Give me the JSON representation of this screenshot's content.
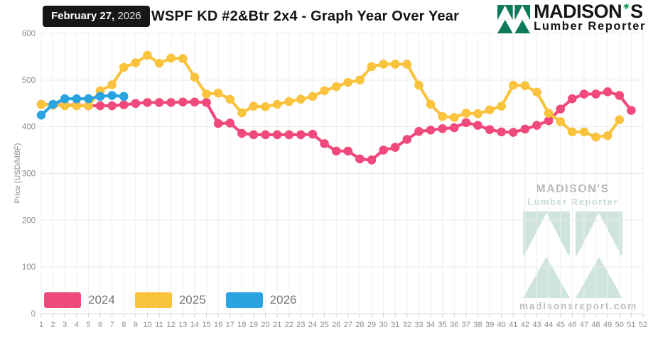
{
  "header": {
    "date_bold": "February 27,",
    "date_year": " 2026",
    "title": "WSPF KD #2&Btr 2x4 - Graph Year Over Year",
    "brand_name": "MADISON",
    "brand_suffix": "S",
    "brand_tagline": "Lumber Reporter"
  },
  "colors": {
    "series_2024": "#f04a7d",
    "series_2025": "#f9c33d",
    "series_2026": "#29a4e0",
    "grid": "#ebebeb",
    "axis_text": "#8c8c8c",
    "badge_bg": "#171717",
    "brand_green": "#0e7a5b",
    "leaf_green": "#1f9d63",
    "watermark_green": "#cfe5dc",
    "watermark_gray": "#b5b5b5"
  },
  "watermark": {
    "brand": "MADISON'S",
    "tagline": "Lumber Reporter",
    "url": "madisonsreport.com"
  },
  "chart_data": {
    "type": "line",
    "title": "WSPF KD #2&Btr 2x4 - Graph Year Over Year",
    "xlabel": "",
    "ylabel": "Price (USD/MBF)",
    "ylim": [
      0,
      600
    ],
    "y_ticks": [
      0,
      100,
      200,
      300,
      400,
      500,
      600
    ],
    "x_ticks": [
      1,
      2,
      3,
      4,
      5,
      6,
      7,
      8,
      9,
      10,
      11,
      12,
      13,
      14,
      15,
      16,
      17,
      18,
      19,
      20,
      21,
      22,
      23,
      24,
      25,
      26,
      27,
      28,
      29,
      30,
      31,
      32,
      33,
      34,
      35,
      36,
      37,
      38,
      39,
      40,
      41,
      42,
      43,
      44,
      45,
      46,
      47,
      48,
      49,
      50,
      51,
      52
    ],
    "grid": true,
    "legend_position": "bottom-left",
    "series": [
      {
        "name": "2024",
        "color": "#f04a7d",
        "values": [
          448,
          447,
          446,
          446,
          445,
          445,
          445,
          447,
          450,
          452,
          452,
          452,
          453,
          453,
          452,
          407,
          408,
          386,
          383,
          383,
          383,
          383,
          383,
          384,
          364,
          348,
          348,
          331,
          329,
          350,
          356,
          373,
          390,
          393,
          396,
          398,
          409,
          403,
          394,
          389,
          388,
          395,
          403,
          413,
          438,
          460,
          470,
          470,
          475,
          467,
          435
        ]
      },
      {
        "name": "2025",
        "color": "#f9c33d",
        "values": [
          448,
          446,
          445,
          445,
          445,
          477,
          490,
          527,
          537,
          553,
          536,
          547,
          546,
          506,
          470,
          472,
          459,
          430,
          444,
          443,
          448,
          454,
          459,
          465,
          477,
          486,
          495,
          500,
          529,
          534,
          534,
          534,
          489,
          448,
          422,
          420,
          429,
          428,
          436,
          444,
          489,
          488,
          474,
          429,
          411,
          389,
          389,
          378,
          381,
          415
        ]
      },
      {
        "name": "2026",
        "color": "#29a4e0",
        "values": [
          425,
          448,
          460,
          460,
          460,
          465,
          467,
          465
        ]
      }
    ]
  }
}
